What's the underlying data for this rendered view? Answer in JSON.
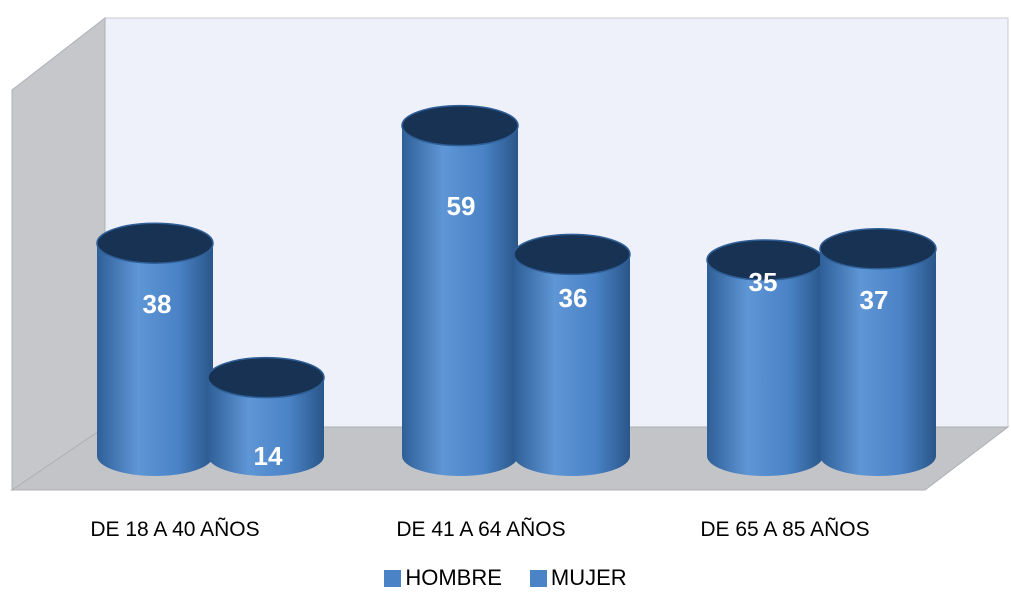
{
  "chart_data": {
    "type": "bar",
    "style": "3d-cylinder",
    "categories": [
      "DE 18 A 40 AÑOS",
      "DE 41 A 64 AÑOS",
      "DE 65 A 85 AÑOS"
    ],
    "series": [
      {
        "name": "HOMBRE",
        "values": [
          38,
          59,
          35
        ],
        "color": "#4a83c6"
      },
      {
        "name": "MUJER",
        "values": [
          14,
          36,
          37
        ],
        "color": "#4a83c6"
      }
    ],
    "title": "",
    "xlabel": "",
    "ylabel": "",
    "ylim": [
      0,
      60
    ],
    "data_labels": true,
    "grid": false,
    "legend_position": "bottom",
    "colors": {
      "bar": "#4a83c6",
      "bar_dark": "#2f5f97",
      "bar_top": "#173253",
      "back_wall": "#eef0fa",
      "side_wall": "#c6c7cb",
      "floor": "#c3c4c8"
    }
  }
}
